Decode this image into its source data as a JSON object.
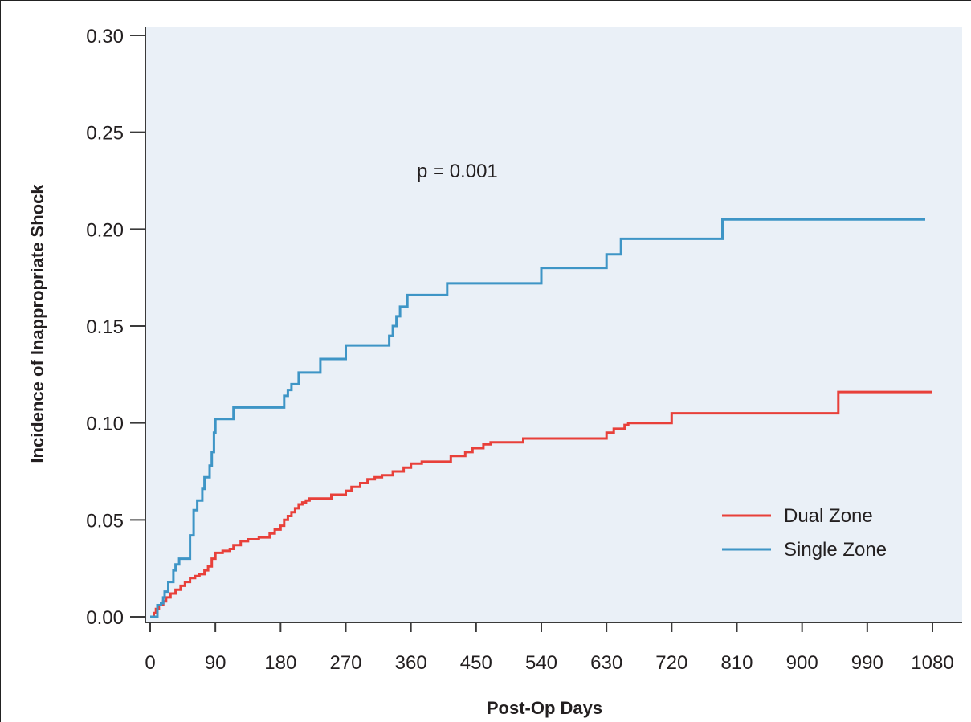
{
  "chart_data": {
    "type": "line",
    "step": true,
    "title": "",
    "annotation": "p = 0.001",
    "xlabel": "Post-Op Days",
    "ylabel": "Incidence of Inappropriate Shock",
    "xlim": [
      0,
      1080
    ],
    "ylim": [
      0,
      0.3
    ],
    "xticks": [
      "0",
      "90",
      "180",
      "270",
      "360",
      "450",
      "540",
      "630",
      "720",
      "810",
      "900",
      "990",
      "1080"
    ],
    "yticks": [
      "0.00",
      "0.05",
      "0.10",
      "0.15",
      "0.20",
      "0.25",
      "0.30"
    ],
    "xtick_values": [
      0,
      90,
      180,
      270,
      360,
      450,
      540,
      630,
      720,
      810,
      900,
      990,
      1080
    ],
    "ytick_values": [
      0,
      0.05,
      0.1,
      0.15,
      0.2,
      0.25,
      0.3
    ],
    "grid": false,
    "legend_position": "lower-right",
    "background_color": "#eaf0f7",
    "series": [
      {
        "name": "Dual Zone",
        "color": "#e8403a",
        "x": [
          0,
          5,
          8,
          12,
          18,
          22,
          28,
          35,
          42,
          48,
          55,
          62,
          68,
          75,
          80,
          85,
          90,
          100,
          110,
          115,
          125,
          135,
          150,
          165,
          172,
          180,
          185,
          190,
          195,
          200,
          205,
          210,
          215,
          220,
          230,
          250,
          270,
          278,
          290,
          300,
          310,
          320,
          335,
          350,
          360,
          375,
          390,
          415,
          435,
          445,
          460,
          470,
          515,
          630,
          640,
          655,
          660,
          720,
          950,
          1080
        ],
        "y": [
          0,
          0.002,
          0.004,
          0.006,
          0.008,
          0.01,
          0.012,
          0.014,
          0.016,
          0.018,
          0.02,
          0.021,
          0.022,
          0.024,
          0.026,
          0.03,
          0.033,
          0.034,
          0.035,
          0.037,
          0.039,
          0.04,
          0.041,
          0.043,
          0.045,
          0.047,
          0.05,
          0.052,
          0.054,
          0.056,
          0.058,
          0.059,
          0.06,
          0.061,
          0.061,
          0.063,
          0.065,
          0.067,
          0.069,
          0.071,
          0.072,
          0.073,
          0.075,
          0.077,
          0.079,
          0.08,
          0.08,
          0.083,
          0.085,
          0.087,
          0.089,
          0.09,
          0.092,
          0.095,
          0.097,
          0.099,
          0.1,
          0.105,
          0.116,
          0.116
        ]
      },
      {
        "name": "Single Zone",
        "color": "#3e95c6",
        "x": [
          0,
          10,
          15,
          18,
          20,
          25,
          32,
          35,
          40,
          50,
          55,
          60,
          65,
          72,
          75,
          82,
          85,
          88,
          90,
          95,
          115,
          185,
          190,
          195,
          205,
          215,
          235,
          250,
          270,
          330,
          335,
          340,
          345,
          355,
          370,
          410,
          420,
          540,
          545,
          630,
          650,
          790,
          1070
        ],
        "y": [
          0,
          0.006,
          0.007,
          0.01,
          0.013,
          0.018,
          0.024,
          0.027,
          0.03,
          0.03,
          0.042,
          0.055,
          0.06,
          0.066,
          0.072,
          0.078,
          0.085,
          0.095,
          0.102,
          0.102,
          0.108,
          0.114,
          0.117,
          0.12,
          0.126,
          0.126,
          0.133,
          0.133,
          0.14,
          0.145,
          0.15,
          0.155,
          0.16,
          0.166,
          0.166,
          0.172,
          0.172,
          0.18,
          0.18,
          0.187,
          0.195,
          0.205,
          0.205
        ]
      }
    ]
  }
}
